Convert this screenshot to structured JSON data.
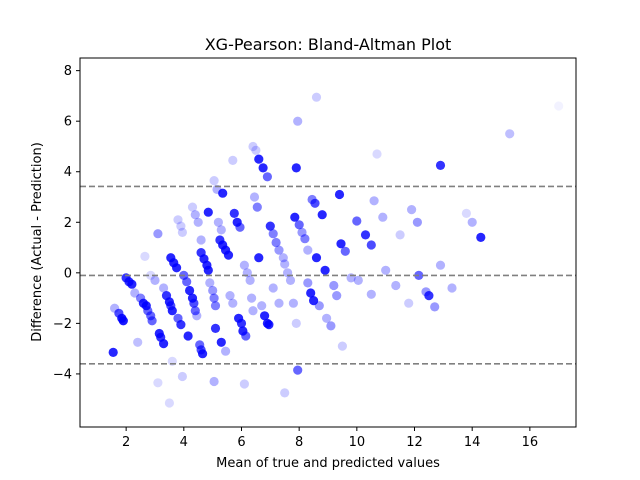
{
  "chart_data": {
    "type": "scatter",
    "title": "XG-Pearson: Bland-Altman Plot",
    "xlabel": "Mean of true and predicted values",
    "ylabel": "Difference (Actual - Prediction)",
    "xlim": [
      0.4,
      17.6
    ],
    "ylim": [
      -6.1,
      8.5
    ],
    "xticks": [
      2,
      4,
      6,
      8,
      10,
      12,
      14,
      16
    ],
    "yticks": [
      -4,
      -2,
      0,
      2,
      4,
      6,
      8
    ],
    "grid": false,
    "marker_color": "#0000ff",
    "line_color": "#808080",
    "reference_lines": [
      {
        "label": "mean difference",
        "y": -0.1
      },
      {
        "label": "upper limit of agreement",
        "y": 3.42
      },
      {
        "label": "lower limit of agreement",
        "y": -3.6
      }
    ],
    "points": [
      {
        "x": 1.55,
        "y": -3.15,
        "alpha": 0.85
      },
      {
        "x": 1.6,
        "y": -1.4,
        "alpha": 0.3
      },
      {
        "x": 1.75,
        "y": -1.6,
        "alpha": 0.7
      },
      {
        "x": 1.85,
        "y": -1.8,
        "alpha": 0.9
      },
      {
        "x": 1.9,
        "y": -1.9,
        "alpha": 0.9
      },
      {
        "x": 2.0,
        "y": -0.2,
        "alpha": 0.8
      },
      {
        "x": 2.1,
        "y": -0.35,
        "alpha": 0.8
      },
      {
        "x": 2.2,
        "y": -0.45,
        "alpha": 0.85
      },
      {
        "x": 2.3,
        "y": -0.8,
        "alpha": 0.3
      },
      {
        "x": 2.4,
        "y": -2.75,
        "alpha": 0.25
      },
      {
        "x": 2.5,
        "y": -1.0,
        "alpha": 0.5
      },
      {
        "x": 2.6,
        "y": -1.2,
        "alpha": 0.85
      },
      {
        "x": 2.7,
        "y": -1.3,
        "alpha": 0.85
      },
      {
        "x": 2.75,
        "y": -1.5,
        "alpha": 0.6
      },
      {
        "x": 2.85,
        "y": -1.7,
        "alpha": 0.6
      },
      {
        "x": 2.9,
        "y": -1.9,
        "alpha": 0.6
      },
      {
        "x": 2.65,
        "y": 0.65,
        "alpha": 0.15
      },
      {
        "x": 2.85,
        "y": -0.1,
        "alpha": 0.15
      },
      {
        "x": 3.0,
        "y": -0.3,
        "alpha": 0.3
      },
      {
        "x": 3.1,
        "y": 1.55,
        "alpha": 0.4
      },
      {
        "x": 3.15,
        "y": -2.4,
        "alpha": 0.85
      },
      {
        "x": 3.2,
        "y": -2.55,
        "alpha": 0.8
      },
      {
        "x": 3.3,
        "y": -2.8,
        "alpha": 0.85
      },
      {
        "x": 3.1,
        "y": -4.35,
        "alpha": 0.15
      },
      {
        "x": 3.3,
        "y": -0.6,
        "alpha": 0.3
      },
      {
        "x": 3.4,
        "y": -0.9,
        "alpha": 0.8
      },
      {
        "x": 3.5,
        "y": -1.15,
        "alpha": 0.85
      },
      {
        "x": 3.55,
        "y": -1.3,
        "alpha": 0.7
      },
      {
        "x": 3.6,
        "y": -1.5,
        "alpha": 0.85
      },
      {
        "x": 3.5,
        "y": -5.15,
        "alpha": 0.15
      },
      {
        "x": 3.6,
        "y": -3.5,
        "alpha": 0.15
      },
      {
        "x": 3.55,
        "y": 0.6,
        "alpha": 0.85
      },
      {
        "x": 3.65,
        "y": 0.4,
        "alpha": 0.85
      },
      {
        "x": 3.75,
        "y": 0.2,
        "alpha": 0.85
      },
      {
        "x": 3.8,
        "y": 2.1,
        "alpha": 0.2
      },
      {
        "x": 3.9,
        "y": 1.85,
        "alpha": 0.2
      },
      {
        "x": 3.95,
        "y": 1.6,
        "alpha": 0.2
      },
      {
        "x": 3.8,
        "y": -1.8,
        "alpha": 0.6
      },
      {
        "x": 3.9,
        "y": -2.05,
        "alpha": 0.8
      },
      {
        "x": 4.0,
        "y": -0.1,
        "alpha": 0.6
      },
      {
        "x": 4.1,
        "y": -0.35,
        "alpha": 0.6
      },
      {
        "x": 4.15,
        "y": -2.5,
        "alpha": 0.85
      },
      {
        "x": 3.95,
        "y": -4.1,
        "alpha": 0.2
      },
      {
        "x": 4.2,
        "y": -0.7,
        "alpha": 0.85
      },
      {
        "x": 4.3,
        "y": -1.0,
        "alpha": 0.85
      },
      {
        "x": 4.35,
        "y": -1.2,
        "alpha": 0.7
      },
      {
        "x": 4.4,
        "y": -1.5,
        "alpha": 0.6
      },
      {
        "x": 4.45,
        "y": -1.7,
        "alpha": 0.3
      },
      {
        "x": 4.3,
        "y": 2.6,
        "alpha": 0.2
      },
      {
        "x": 4.4,
        "y": 2.3,
        "alpha": 0.3
      },
      {
        "x": 4.5,
        "y": 2.0,
        "alpha": 0.3
      },
      {
        "x": 4.6,
        "y": 1.3,
        "alpha": 0.3
      },
      {
        "x": 4.55,
        "y": -2.85,
        "alpha": 0.6
      },
      {
        "x": 4.6,
        "y": -3.05,
        "alpha": 0.7
      },
      {
        "x": 4.65,
        "y": -3.2,
        "alpha": 0.85
      },
      {
        "x": 4.6,
        "y": 0.8,
        "alpha": 0.8
      },
      {
        "x": 4.7,
        "y": 0.55,
        "alpha": 0.85
      },
      {
        "x": 4.8,
        "y": 0.3,
        "alpha": 0.85
      },
      {
        "x": 4.85,
        "y": 0.1,
        "alpha": 0.85
      },
      {
        "x": 4.85,
        "y": 2.4,
        "alpha": 0.85
      },
      {
        "x": 4.9,
        "y": -0.4,
        "alpha": 0.3
      },
      {
        "x": 5.0,
        "y": -0.7,
        "alpha": 0.4
      },
      {
        "x": 5.05,
        "y": -1.0,
        "alpha": 0.5
      },
      {
        "x": 5.1,
        "y": -1.3,
        "alpha": 0.5
      },
      {
        "x": 5.1,
        "y": -2.2,
        "alpha": 0.8
      },
      {
        "x": 5.05,
        "y": -4.3,
        "alpha": 0.3
      },
      {
        "x": 5.05,
        "y": 3.65,
        "alpha": 0.2
      },
      {
        "x": 5.15,
        "y": 3.3,
        "alpha": 0.3
      },
      {
        "x": 5.2,
        "y": 2.0,
        "alpha": 0.3
      },
      {
        "x": 5.3,
        "y": 1.7,
        "alpha": 0.3
      },
      {
        "x": 5.35,
        "y": 3.15,
        "alpha": 0.85
      },
      {
        "x": 5.25,
        "y": 1.3,
        "alpha": 0.8
      },
      {
        "x": 5.35,
        "y": 1.1,
        "alpha": 0.85
      },
      {
        "x": 5.45,
        "y": 0.9,
        "alpha": 0.85
      },
      {
        "x": 5.55,
        "y": 0.7,
        "alpha": 0.85
      },
      {
        "x": 5.3,
        "y": -2.75,
        "alpha": 0.85
      },
      {
        "x": 5.45,
        "y": -3.1,
        "alpha": 0.3
      },
      {
        "x": 5.6,
        "y": -0.9,
        "alpha": 0.3
      },
      {
        "x": 5.7,
        "y": -1.2,
        "alpha": 0.3
      },
      {
        "x": 5.7,
        "y": 4.45,
        "alpha": 0.2
      },
      {
        "x": 5.75,
        "y": 2.35,
        "alpha": 0.8
      },
      {
        "x": 5.85,
        "y": 2.0,
        "alpha": 0.85
      },
      {
        "x": 5.95,
        "y": 1.8,
        "alpha": 0.6
      },
      {
        "x": 5.9,
        "y": -1.8,
        "alpha": 0.85
      },
      {
        "x": 6.0,
        "y": -2.0,
        "alpha": 0.8
      },
      {
        "x": 6.05,
        "y": -2.3,
        "alpha": 0.85
      },
      {
        "x": 6.15,
        "y": -2.5,
        "alpha": 0.6
      },
      {
        "x": 6.1,
        "y": 0.3,
        "alpha": 0.3
      },
      {
        "x": 6.2,
        "y": 0.0,
        "alpha": 0.3
      },
      {
        "x": 6.3,
        "y": -0.3,
        "alpha": 0.3
      },
      {
        "x": 6.35,
        "y": -1.0,
        "alpha": 0.3
      },
      {
        "x": 6.4,
        "y": -1.5,
        "alpha": 0.3
      },
      {
        "x": 6.1,
        "y": -4.4,
        "alpha": 0.2
      },
      {
        "x": 6.4,
        "y": 5.0,
        "alpha": 0.2
      },
      {
        "x": 6.5,
        "y": 4.85,
        "alpha": 0.2
      },
      {
        "x": 6.45,
        "y": 3.0,
        "alpha": 0.3
      },
      {
        "x": 6.55,
        "y": 2.6,
        "alpha": 0.5
      },
      {
        "x": 6.6,
        "y": 0.6,
        "alpha": 0.85
      },
      {
        "x": 6.6,
        "y": 4.5,
        "alpha": 0.85
      },
      {
        "x": 6.75,
        "y": 4.15,
        "alpha": 0.85
      },
      {
        "x": 6.9,
        "y": 3.8,
        "alpha": 0.6
      },
      {
        "x": 6.8,
        "y": -1.7,
        "alpha": 0.85
      },
      {
        "x": 6.9,
        "y": -2.0,
        "alpha": 0.85
      },
      {
        "x": 6.95,
        "y": -2.05,
        "alpha": 0.85
      },
      {
        "x": 6.7,
        "y": -1.3,
        "alpha": 0.3
      },
      {
        "x": 7.0,
        "y": 1.85,
        "alpha": 0.8
      },
      {
        "x": 7.1,
        "y": 1.55,
        "alpha": 0.5
      },
      {
        "x": 7.2,
        "y": 1.2,
        "alpha": 0.5
      },
      {
        "x": 7.3,
        "y": 0.9,
        "alpha": 0.4
      },
      {
        "x": 7.1,
        "y": -0.6,
        "alpha": 0.3
      },
      {
        "x": 7.3,
        "y": -1.2,
        "alpha": 0.3
      },
      {
        "x": 7.45,
        "y": 0.6,
        "alpha": 0.3
      },
      {
        "x": 7.5,
        "y": 0.35,
        "alpha": 0.3
      },
      {
        "x": 7.5,
        "y": -4.75,
        "alpha": 0.2
      },
      {
        "x": 7.6,
        "y": 0.0,
        "alpha": 0.3
      },
      {
        "x": 7.7,
        "y": -0.3,
        "alpha": 0.3
      },
      {
        "x": 7.8,
        "y": -1.2,
        "alpha": 0.3
      },
      {
        "x": 7.9,
        "y": 4.15,
        "alpha": 0.85
      },
      {
        "x": 7.95,
        "y": 6.0,
        "alpha": 0.3
      },
      {
        "x": 7.85,
        "y": 2.2,
        "alpha": 0.85
      },
      {
        "x": 8.0,
        "y": 1.9,
        "alpha": 0.6
      },
      {
        "x": 8.1,
        "y": 1.6,
        "alpha": 0.4
      },
      {
        "x": 7.9,
        "y": -2.0,
        "alpha": 0.2
      },
      {
        "x": 7.95,
        "y": -3.85,
        "alpha": 0.6
      },
      {
        "x": 8.2,
        "y": 1.35,
        "alpha": 0.5
      },
      {
        "x": 8.3,
        "y": -0.4,
        "alpha": 0.4
      },
      {
        "x": 8.4,
        "y": -0.8,
        "alpha": 0.85
      },
      {
        "x": 8.5,
        "y": -1.1,
        "alpha": 0.85
      },
      {
        "x": 8.3,
        "y": 0.9,
        "alpha": 0.3
      },
      {
        "x": 8.45,
        "y": 2.9,
        "alpha": 0.5
      },
      {
        "x": 8.55,
        "y": 2.75,
        "alpha": 0.7
      },
      {
        "x": 8.6,
        "y": 0.6,
        "alpha": 0.85
      },
      {
        "x": 8.6,
        "y": 6.95,
        "alpha": 0.2
      },
      {
        "x": 8.7,
        "y": -1.3,
        "alpha": 0.4
      },
      {
        "x": 8.8,
        "y": 2.3,
        "alpha": 0.85
      },
      {
        "x": 8.9,
        "y": 0.1,
        "alpha": 0.85
      },
      {
        "x": 8.95,
        "y": -1.8,
        "alpha": 0.3
      },
      {
        "x": 9.1,
        "y": -2.1,
        "alpha": 0.4
      },
      {
        "x": 9.2,
        "y": -0.5,
        "alpha": 0.4
      },
      {
        "x": 9.3,
        "y": -0.9,
        "alpha": 0.4
      },
      {
        "x": 9.4,
        "y": 3.1,
        "alpha": 0.85
      },
      {
        "x": 9.45,
        "y": 1.15,
        "alpha": 0.85
      },
      {
        "x": 9.6,
        "y": 0.85,
        "alpha": 0.6
      },
      {
        "x": 9.5,
        "y": -2.9,
        "alpha": 0.2
      },
      {
        "x": 9.8,
        "y": -0.2,
        "alpha": 0.3
      },
      {
        "x": 10.0,
        "y": 2.05,
        "alpha": 0.6
      },
      {
        "x": 10.05,
        "y": -0.3,
        "alpha": 0.3
      },
      {
        "x": 10.3,
        "y": 1.5,
        "alpha": 0.8
      },
      {
        "x": 10.5,
        "y": 1.1,
        "alpha": 0.7
      },
      {
        "x": 10.5,
        "y": -0.85,
        "alpha": 0.3
      },
      {
        "x": 10.6,
        "y": 2.85,
        "alpha": 0.3
      },
      {
        "x": 10.7,
        "y": 4.7,
        "alpha": 0.15
      },
      {
        "x": 10.9,
        "y": 2.2,
        "alpha": 0.3
      },
      {
        "x": 11.0,
        "y": 0.1,
        "alpha": 0.3
      },
      {
        "x": 11.35,
        "y": -0.5,
        "alpha": 0.3
      },
      {
        "x": 11.5,
        "y": 1.5,
        "alpha": 0.2
      },
      {
        "x": 11.9,
        "y": 2.5,
        "alpha": 0.3
      },
      {
        "x": 11.8,
        "y": -1.2,
        "alpha": 0.2
      },
      {
        "x": 12.1,
        "y": 2.0,
        "alpha": 0.4
      },
      {
        "x": 12.15,
        "y": -0.1,
        "alpha": 0.6
      },
      {
        "x": 12.4,
        "y": -0.75,
        "alpha": 0.4
      },
      {
        "x": 12.5,
        "y": -0.9,
        "alpha": 0.8
      },
      {
        "x": 12.7,
        "y": -1.35,
        "alpha": 0.4
      },
      {
        "x": 12.9,
        "y": 4.25,
        "alpha": 0.8
      },
      {
        "x": 12.9,
        "y": 0.3,
        "alpha": 0.3
      },
      {
        "x": 13.3,
        "y": -0.6,
        "alpha": 0.3
      },
      {
        "x": 13.8,
        "y": 2.35,
        "alpha": 0.15
      },
      {
        "x": 14.0,
        "y": 2.0,
        "alpha": 0.3
      },
      {
        "x": 14.3,
        "y": 1.4,
        "alpha": 0.85
      },
      {
        "x": 15.3,
        "y": 5.5,
        "alpha": 0.25
      },
      {
        "x": 17.0,
        "y": 6.6,
        "alpha": 0.05
      }
    ]
  }
}
